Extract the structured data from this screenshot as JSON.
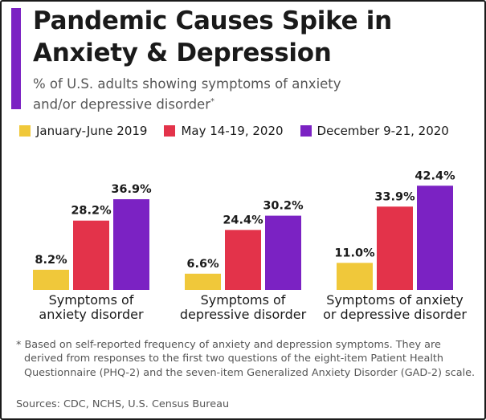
{
  "header": {
    "title": "Pandemic Causes Spike in Anxiety & Depression",
    "subtitle": "% of U.S. adults showing symptoms of anxiety and/or depressive disorder",
    "subtitle_marker": "*"
  },
  "legend": [
    {
      "label": "January-June 2019",
      "color": "#f0c83a"
    },
    {
      "label": "May 14-19, 2020",
      "color": "#e3334a"
    },
    {
      "label": "December 9-21, 2020",
      "color": "#7b22c3"
    }
  ],
  "chart_data": {
    "type": "bar",
    "title": "Pandemic Causes Spike in Anxiety & Depression",
    "subtitle": "% of U.S. adults showing symptoms of anxiety and/or depressive disorder",
    "categories": [
      [
        "Symptoms of",
        "anxiety disorder"
      ],
      [
        "Symptoms of",
        "depressive disorder"
      ],
      [
        "Symptoms of anxiety",
        "or depressive disorder"
      ]
    ],
    "series": [
      {
        "name": "January-June 2019",
        "color": "#f0c83a",
        "values": [
          8.2,
          6.6,
          11.0
        ],
        "labels": [
          "8.2%",
          "6.6%",
          "11.0%"
        ]
      },
      {
        "name": "May 14-19, 2020",
        "color": "#e3334a",
        "values": [
          28.2,
          24.4,
          33.9
        ],
        "labels": [
          "28.2%",
          "24.4%",
          "33.9%"
        ]
      },
      {
        "name": "December 9-21, 2020",
        "color": "#7b22c3",
        "values": [
          36.9,
          30.2,
          42.4
        ],
        "labels": [
          "36.9%",
          "30.2%",
          "42.4%"
        ]
      }
    ],
    "ylim": [
      0,
      45
    ],
    "grid": false,
    "legend_position": "top"
  },
  "footer": {
    "footnote": "* Based on self-reported frequency of anxiety and depression symptoms. They are derived from responses to the first two questions of the eight-item Patient Health Questionnaire (PHQ-2) and the seven-item Generalized Anxiety Disorder (GAD-2) scale.",
    "sources": "Sources: CDC, NCHS, U.S. Census Bureau"
  }
}
